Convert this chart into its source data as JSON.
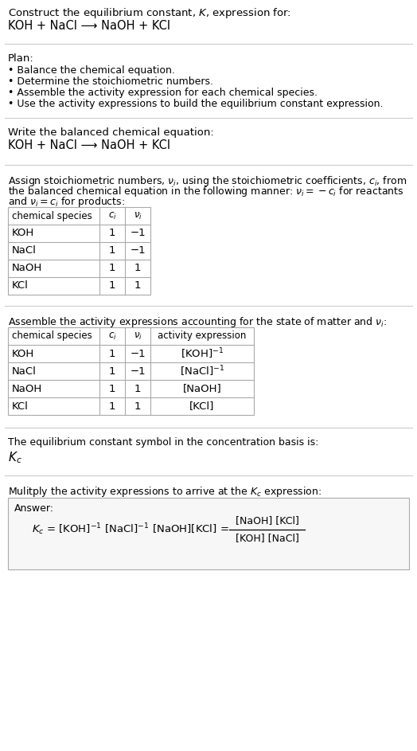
{
  "title_line1": "Construct the equilibrium constant, $K$, expression for:",
  "title_line2": "KOH + NaCl ⟶ NaOH + KCl",
  "plan_header": "Plan:",
  "plan_bullets": [
    "• Balance the chemical equation.",
    "• Determine the stoichiometric numbers.",
    "• Assemble the activity expression for each chemical species.",
    "• Use the activity expressions to build the equilibrium constant expression."
  ],
  "section2_header": "Write the balanced chemical equation:",
  "section2_eq": "KOH + NaCl ⟶ NaOH + KCl",
  "section3_text1": "Assign stoichiometric numbers, $\\nu_i$, using the stoichiometric coefficients, $c_i$, from",
  "section3_text2": "the balanced chemical equation in the following manner: $\\nu_i = -c_i$ for reactants",
  "section3_text3": "and $\\nu_i = c_i$ for products:",
  "table1_headers": [
    "chemical species",
    "$c_i$",
    "$\\nu_i$"
  ],
  "table1_rows": [
    [
      "KOH",
      "1",
      "−1"
    ],
    [
      "NaCl",
      "1",
      "−1"
    ],
    [
      "NaOH",
      "1",
      "1"
    ],
    [
      "KCl",
      "1",
      "1"
    ]
  ],
  "section4_text": "Assemble the activity expressions accounting for the state of matter and $\\nu_i$:",
  "table2_headers": [
    "chemical species",
    "$c_i$",
    "$\\nu_i$",
    "activity expression"
  ],
  "table2_rows": [
    [
      "KOH",
      "1",
      "−1",
      "[KOH]$^{-1}$"
    ],
    [
      "NaCl",
      "1",
      "−1",
      "[NaCl]$^{-1}$"
    ],
    [
      "NaOH",
      "1",
      "1",
      "[NaOH]"
    ],
    [
      "KCl",
      "1",
      "1",
      "[KCl]"
    ]
  ],
  "section5_text": "The equilibrium constant symbol in the concentration basis is:",
  "section5_symbol": "$K_c$",
  "section6_text": "Mulitply the activity expressions to arrive at the $K_c$ expression:",
  "answer_label": "Answer:",
  "bg_color": "#ffffff",
  "text_color": "#000000",
  "separator_color": "#cccccc",
  "table_line_color": "#aaaaaa",
  "answer_box_border": "#aaaaaa",
  "answer_box_bg": "#f7f7f7",
  "font_size": 9.5
}
